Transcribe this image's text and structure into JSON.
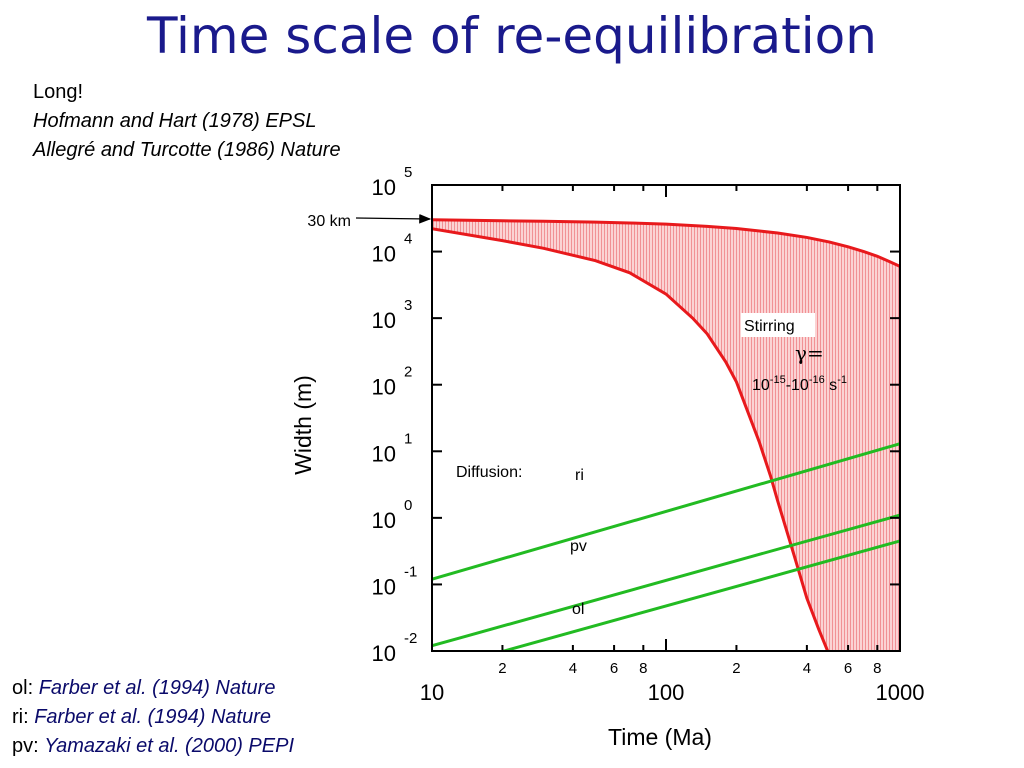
{
  "title": "Time scale of re-equilibration",
  "refs_top": {
    "line1": "Long!",
    "line2": "Hofmann and Hart (1978) EPSL",
    "line3": "Allegré and Turcotte (1986) Nature"
  },
  "refs_bottom": [
    {
      "prefix": "ol: ",
      "cite": "Farber et al. (1994) Nature"
    },
    {
      "prefix": "ri: ",
      "cite": "Farber et al. (1994) Nature"
    },
    {
      "prefix": "pv: ",
      "cite": "Yamazaki et al. (2000) PEPI"
    }
  ],
  "chart_data": {
    "type": "line",
    "xlabel": "Time (Ma)",
    "ylabel": "Width (m)",
    "xscale": "log",
    "yscale": "log",
    "xlim": [
      10,
      1000
    ],
    "ylim": [
      0.01,
      100000
    ],
    "x_major_ticks": [
      "10",
      "100",
      "1000"
    ],
    "x_minor_ticks": [
      "2",
      "4",
      "6",
      "8",
      "2",
      "4",
      "6",
      "8"
    ],
    "y_ticks": [
      {
        "base": "10",
        "exp": "5"
      },
      {
        "base": "10",
        "exp": "4"
      },
      {
        "base": "10",
        "exp": "3"
      },
      {
        "base": "10",
        "exp": "2"
      },
      {
        "base": "10",
        "exp": "1"
      },
      {
        "base": "10",
        "exp": "0"
      },
      {
        "base": "10",
        "exp": "-1"
      },
      {
        "base": "10",
        "exp": "-2"
      }
    ],
    "annotations": {
      "arrow_label": "30 km",
      "stirring": "Stirring",
      "gamma_symbol": "γ=",
      "strain_rate": {
        "a": "10",
        "a_exp": "-15",
        "sep": "-",
        "b": "10",
        "b_exp": "-16",
        "unit": " s",
        "unit_exp": "-1"
      },
      "diffusion": "Diffusion:"
    },
    "stirring_upper": {
      "name": "Stirring upper bound",
      "color": "#e8191c",
      "x": [
        10,
        20,
        30,
        50,
        70,
        100,
        150,
        200,
        300,
        400,
        500,
        600,
        700,
        800,
        900,
        1000
      ],
      "y": [
        30000,
        29000,
        28500,
        27700,
        26900,
        25800,
        23900,
        22200,
        19000,
        16300,
        13900,
        11800,
        10000,
        8500,
        7100,
        6000
      ]
    },
    "stirring_lower": {
      "name": "Stirring lower bound",
      "color": "#e8191c",
      "x": [
        10,
        20,
        30,
        50,
        70,
        100,
        130,
        150,
        180,
        200,
        250,
        280,
        300,
        350,
        400,
        450,
        500
      ],
      "y": [
        22000,
        14600,
        11200,
        7300,
        4800,
        2300,
        1000,
        580,
        220,
        110,
        14,
        4.2,
        1.8,
        0.3,
        0.062,
        0.021,
        0.0085
      ]
    },
    "series": [
      {
        "name": "ri",
        "color": "#22bb22",
        "x": [
          10,
          1000
        ],
        "y": [
          0.12,
          13
        ]
      },
      {
        "name": "pv",
        "color": "#22bb22",
        "x": [
          10,
          1000
        ],
        "y": [
          0.012,
          1.1
        ]
      },
      {
        "name": "ol",
        "color": "#22bb22",
        "x": [
          10,
          1000
        ],
        "y": [
          0.005,
          0.45
        ]
      }
    ],
    "fill_color": "#f4a6a8"
  }
}
